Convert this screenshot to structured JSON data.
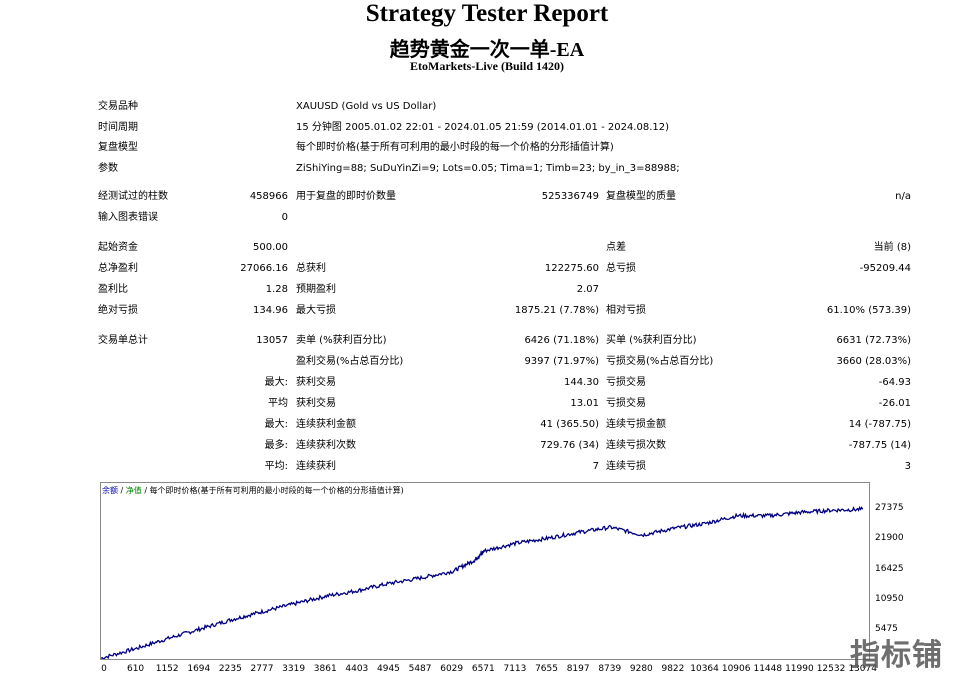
{
  "header": {
    "title": "Strategy Tester Report",
    "ea_name": "趋势黄金一次一单-EA",
    "server": "EtoMarkets-Live (Build 1420)"
  },
  "info": {
    "symbol_label": "交易品种",
    "symbol_value": "XAUUSD (Gold vs US Dollar)",
    "period_label": "时间周期",
    "period_value": "15 分钟图 2005.01.02 22:01 - 2024.01.05 21:59 (2014.01.01 - 2024.08.12)",
    "model_label": "复盘模型",
    "model_value": "每个即时价格(基于所有可利用的最小时段的每一个价格的分形插值计算)",
    "params_label": "参数",
    "params_value": "ZiShiYing=88; SuDuYinZi=9; Lots=0.05; Tima=1; Timb=23; by_in_3=88988;"
  },
  "stats": {
    "bars_label": "经测试过的柱数",
    "bars_value": "458966",
    "ticks_label": "用于复盘的即时价数量",
    "ticks_value": "525336749",
    "quality_label": "复盘模型的质量",
    "quality_value": "n/a",
    "errors_label": "输入图表错误",
    "errors_value": "0",
    "deposit_label": "起始资金",
    "deposit_value": "500.00",
    "spread_label": "点差",
    "spread_value": "当前 (8)",
    "net_label": "总净盈利",
    "net_value": "27066.16",
    "gross_profit_label": "总获利",
    "gross_profit_value": "122275.60",
    "gross_loss_label": "总亏损",
    "gross_loss_value": "-95209.44",
    "pf_label": "盈利比",
    "pf_value": "1.28",
    "payoff_label": "预期盈利",
    "payoff_value": "2.07",
    "abs_dd_label": "绝对亏损",
    "abs_dd_value": "134.96",
    "max_dd_label": "最大亏损",
    "max_dd_value": "1875.21 (7.78%)",
    "rel_dd_label": "相对亏损",
    "rel_dd_value": "61.10% (573.39)",
    "trades_label": "交易单总计",
    "trades_value": "13057",
    "short_label": "卖单 (%获利百分比)",
    "short_value": "6426 (71.18%)",
    "long_label": "买单 (%获利百分比)",
    "long_value": "6631 (72.73%)",
    "win_label": "盈利交易(%占总百分比)",
    "win_value": "9397 (71.97%)",
    "loss_label": "亏损交易(%占总百分比)",
    "loss_value": "3660 (28.03%)",
    "max_prefix": "最大:",
    "largest_win_label": "获利交易",
    "largest_win_value": "144.30",
    "largest_loss_label": "亏损交易",
    "largest_loss_value": "-64.93",
    "avg_prefix": "平均",
    "avg_win_label": "获利交易",
    "avg_win_value": "13.01",
    "avg_loss_label": "亏损交易",
    "avg_loss_value": "-26.01",
    "max2_prefix": "最大:",
    "cons_win_amt_label": "连续获利金额",
    "cons_win_amt_value": "41 (365.50)",
    "cons_loss_amt_label": "连续亏损金额",
    "cons_loss_amt_value": "14 (-787.75)",
    "most_prefix": "最多:",
    "cons_win_cnt_label": "连续获利次数",
    "cons_win_cnt_value": "729.76 (34)",
    "cons_loss_cnt_label": "连续亏损次数",
    "cons_loss_cnt_value": "-787.75 (14)",
    "avg2_prefix": "平均:",
    "avg_cons_win_label": "连续获利",
    "avg_cons_win_value": "7",
    "avg_cons_loss_label": "连续亏损",
    "avg_cons_loss_value": "3"
  },
  "legend": {
    "balance": "余额",
    "sep1": " / ",
    "equity": "净值",
    "sep2": " / ",
    "model": "每个即时价格(基于所有可利用的最小时段的每一个价格的分形插值计算)"
  },
  "watermark": "指标铺",
  "chart_data": {
    "type": "line",
    "x_ticks": [
      "0",
      "610",
      "1152",
      "1694",
      "2235",
      "2777",
      "3319",
      "3861",
      "4403",
      "4945",
      "5487",
      "6029",
      "6571",
      "7113",
      "7655",
      "8197",
      "8739",
      "9280",
      "9822",
      "10364",
      "10906",
      "11448",
      "11990",
      "12532",
      "13074"
    ],
    "y_ticks": [
      "5475",
      "10950",
      "16425",
      "21900",
      "27375"
    ],
    "xlim": [
      0,
      13200
    ],
    "ylim": [
      0,
      29800
    ],
    "series": [
      {
        "color": "#000080",
        "x": [
          0,
          610,
          1152,
          1694,
          2235,
          2777,
          3319,
          3861,
          4403,
          4945,
          5487,
          6029,
          6400,
          6571,
          7113,
          7655,
          8197,
          8739,
          9280,
          9822,
          10364,
          10906,
          11448,
          11990,
          12532,
          13057
        ],
        "y": [
          500,
          2300,
          4100,
          5800,
          7500,
          9000,
          10400,
          11800,
          12800,
          14100,
          15100,
          16300,
          18300,
          20000,
          21400,
          22300,
          23400,
          24300,
          22900,
          24100,
          25000,
          26400,
          26400,
          27000,
          27400,
          27566
        ]
      }
    ]
  }
}
